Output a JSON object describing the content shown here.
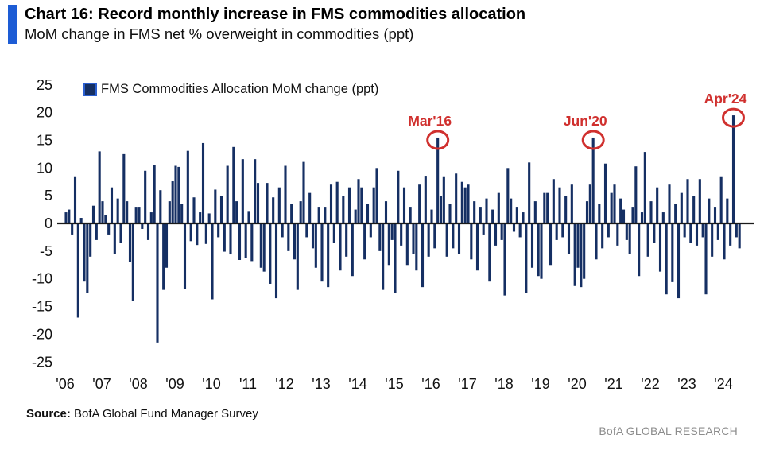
{
  "header": {
    "title": "Chart 16: Record monthly increase in FMS commodities allocation",
    "subtitle": "MoM change in FMS net % overweight in commodities (ppt)"
  },
  "legend": {
    "label": "FMS Commodities Allocation MoM change (ppt)"
  },
  "source": {
    "prefix": "Source:",
    "text": " BofA Global Fund Manager Survey"
  },
  "brand": "BofA GLOBAL RESEARCH",
  "colors": {
    "bar": "#152f63",
    "accent_blue": "#1d5cd5",
    "annotation_red": "#d0302e",
    "axis_line": "#1a1a1a",
    "brand_gray": "#8c8c8c"
  },
  "chart_data": {
    "type": "bar",
    "title": "Chart 16: Record monthly increase in FMS commodities allocation",
    "subtitle": "MoM change in FMS net % overweight in commodities (ppt)",
    "frequency": "monthly",
    "x_start": "2006-01",
    "x_end": "2024-06",
    "xlabel": "",
    "ylabel": "MoM change (ppt)",
    "ylim": [
      -25,
      25
    ],
    "grid": false,
    "legend_position": "top-left",
    "y_ticks": [
      25,
      20,
      15,
      10,
      5,
      0,
      -5,
      -10,
      -15,
      -20,
      -25
    ],
    "year_tick_labels": [
      "'06",
      "'07",
      "'08",
      "'09",
      "'10",
      "'11",
      "'12",
      "'13",
      "'14",
      "'15",
      "'16",
      "'17",
      "'18",
      "'19",
      "'20",
      "'21",
      "'22",
      "'23",
      "'24"
    ],
    "series": [
      {
        "name": "FMS Commodities Allocation MoM change (ppt)",
        "values": [
          2,
          2.5,
          -2,
          8.5,
          -17,
          1,
          -10.5,
          -12.5,
          -6,
          3.2,
          -3,
          13,
          4,
          1.5,
          -2,
          6.5,
          -5.5,
          4.5,
          -3.5,
          12.5,
          4,
          -7,
          -14,
          3,
          3,
          -1,
          9.5,
          -3,
          2,
          10.5,
          -21.5,
          6,
          -12,
          -8,
          4,
          7.6,
          10.4,
          10.2,
          3.5,
          -11.8,
          13.1,
          -3.2,
          4.7,
          -3.9,
          2,
          14.5,
          -3.7,
          1.8,
          -13.7,
          6.1,
          -2.5,
          4.9,
          -5.1,
          10.4,
          -5.6,
          13.8,
          4.0,
          -6.6,
          11.6,
          -6.3,
          2.1,
          -6.8,
          11.6,
          7.3,
          -8,
          -8.7,
          7.3,
          -10.9,
          4.7,
          -13.5,
          6.5,
          -2.5,
          10.4,
          -5,
          3.5,
          -6.5,
          -12,
          4,
          11.1,
          -2.5,
          5.5,
          -4.5,
          -8,
          3,
          -10.5,
          3,
          -11.5,
          7,
          -3.5,
          7.5,
          -8.5,
          5,
          -6,
          6.5,
          -9.5,
          2.5,
          8,
          6.5,
          -6.5,
          3.5,
          -2.5,
          6.5,
          10,
          -5,
          -12,
          4,
          -7.5,
          -3,
          -12.5,
          9.5,
          -4,
          6.5,
          -7.5,
          3,
          -5.5,
          -8.5,
          7,
          -11.5,
          8.6,
          -6,
          2.5,
          -4.5,
          15.5,
          5,
          8.5,
          -6,
          3.5,
          -4.5,
          9,
          -5.5,
          7.5,
          6.5,
          7,
          -6.5,
          4,
          -8.5,
          3,
          -2,
          4.5,
          -10.5,
          2.5,
          -4,
          5.5,
          -3,
          -13,
          10,
          4.5,
          -1.5,
          3,
          -2.5,
          2,
          -12.5,
          11,
          -8,
          4,
          -9.5,
          -10,
          5.5,
          5.5,
          -7.5,
          8,
          -3,
          6.5,
          -2.5,
          5,
          -5.5,
          7,
          -11.3,
          -8,
          -11.5,
          -10,
          4,
          7,
          15.5,
          -6.5,
          3.5,
          -4.5,
          10.8,
          -2.5,
          5.5,
          7,
          -4,
          4.5,
          2.5,
          -3,
          -5.5,
          3,
          10.3,
          -9.5,
          2,
          12.9,
          -6,
          4,
          -3.5,
          6.5,
          -8.7,
          2,
          -12.8,
          7,
          -10.6,
          3.5,
          -13.5,
          5.5,
          -2.5,
          8,
          -3.5,
          5,
          -4,
          8,
          -2.5,
          -12.8,
          4.5,
          -6,
          3,
          -3,
          8.5,
          -6.5,
          4.5,
          -4,
          19.5,
          -2.5,
          -4.5
        ]
      }
    ],
    "annotations": [
      {
        "label": "Mar'16",
        "month": "2016-03",
        "index": 122,
        "value": 15.5
      },
      {
        "label": "Jun'20",
        "month": "2020-06",
        "index": 173,
        "value": 15.5
      },
      {
        "label": "Apr'24",
        "month": "2024-04",
        "index": 219,
        "value": 19.5
      }
    ]
  }
}
